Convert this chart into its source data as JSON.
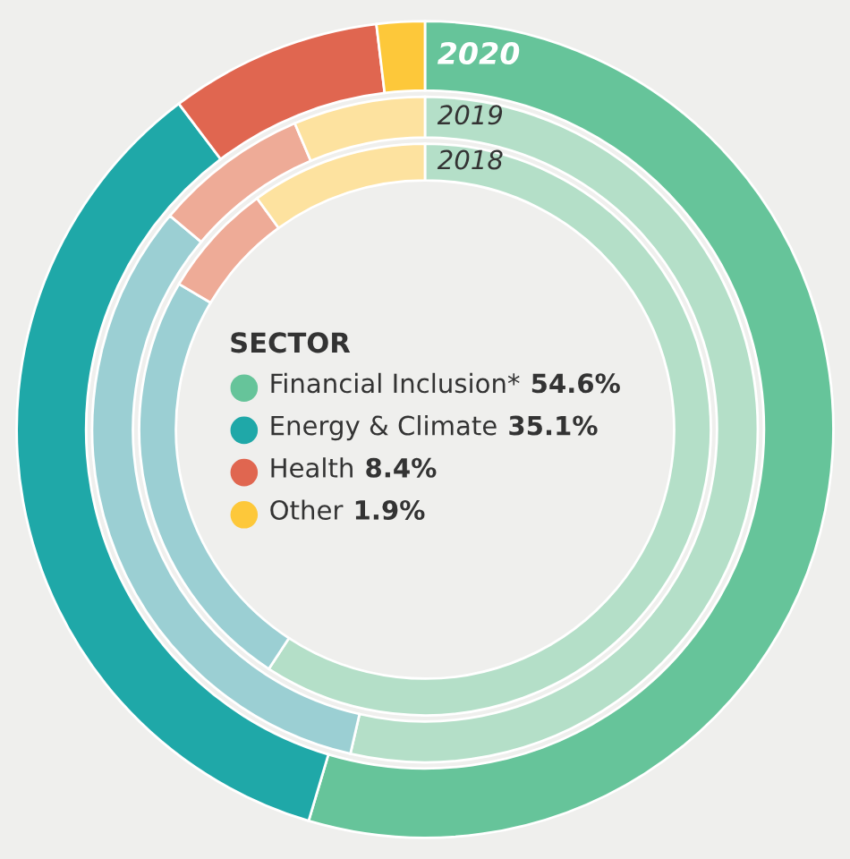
{
  "chart_data": {
    "type": "donut",
    "legend_title": "SECTOR",
    "legend": "center",
    "categories": [
      "Financial Inclusion*",
      "Energy & Climate",
      "Health",
      "Other"
    ],
    "series": [
      {
        "name": "2020",
        "values": [
          54.6,
          35.1,
          8.4,
          1.9
        ],
        "colors": [
          "#66c49a",
          "#1fa8a8",
          "#e06650",
          "#fdc83a"
        ],
        "value_labels": [
          "54.6%",
          "35.1%",
          "8.4%",
          "1.9%"
        ]
      },
      {
        "name": "2019",
        "values": [
          53.6,
          32.5,
          7.5,
          6.4
        ],
        "colors": [
          "#b4dfc8",
          "#9bcfd3",
          "#eeab97",
          "#fde29f"
        ]
      },
      {
        "name": "2018",
        "values": [
          59.2,
          24.3,
          6.5,
          10.0
        ],
        "colors": [
          "#b4dfc8",
          "#9bcfd3",
          "#eeab97",
          "#fde29f"
        ]
      }
    ]
  }
}
